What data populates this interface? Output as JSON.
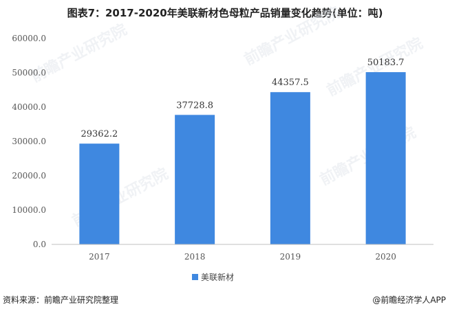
{
  "title": "图表7：2017-2020年美联新材色母粒产品销量变化趋势(单位：吨)",
  "footer": {
    "source": "资料来源：前瞻产业研究院整理",
    "brand": "@前瞻经济学人APP"
  },
  "watermark": "前瞻产业研究院",
  "colors": {
    "bar": "#3f88e0",
    "axis": "#bfbfbf",
    "grid": "#e6e6e6"
  },
  "chart_data": {
    "type": "bar",
    "categories": [
      "2017",
      "2018",
      "2019",
      "2020"
    ],
    "series": [
      {
        "name": "美联新材",
        "values": [
          29362.2,
          37728.8,
          44357.5,
          50183.7
        ]
      }
    ],
    "data_labels": [
      "29362.2",
      "37728.8",
      "44357.5",
      "50183.7"
    ],
    "yticks": [
      "0.0",
      "10000.0",
      "20000.0",
      "30000.0",
      "40000.0",
      "50000.0",
      "60000.0"
    ],
    "ylim": [
      0,
      60000
    ],
    "grid": false,
    "legend": "bottom-center"
  }
}
